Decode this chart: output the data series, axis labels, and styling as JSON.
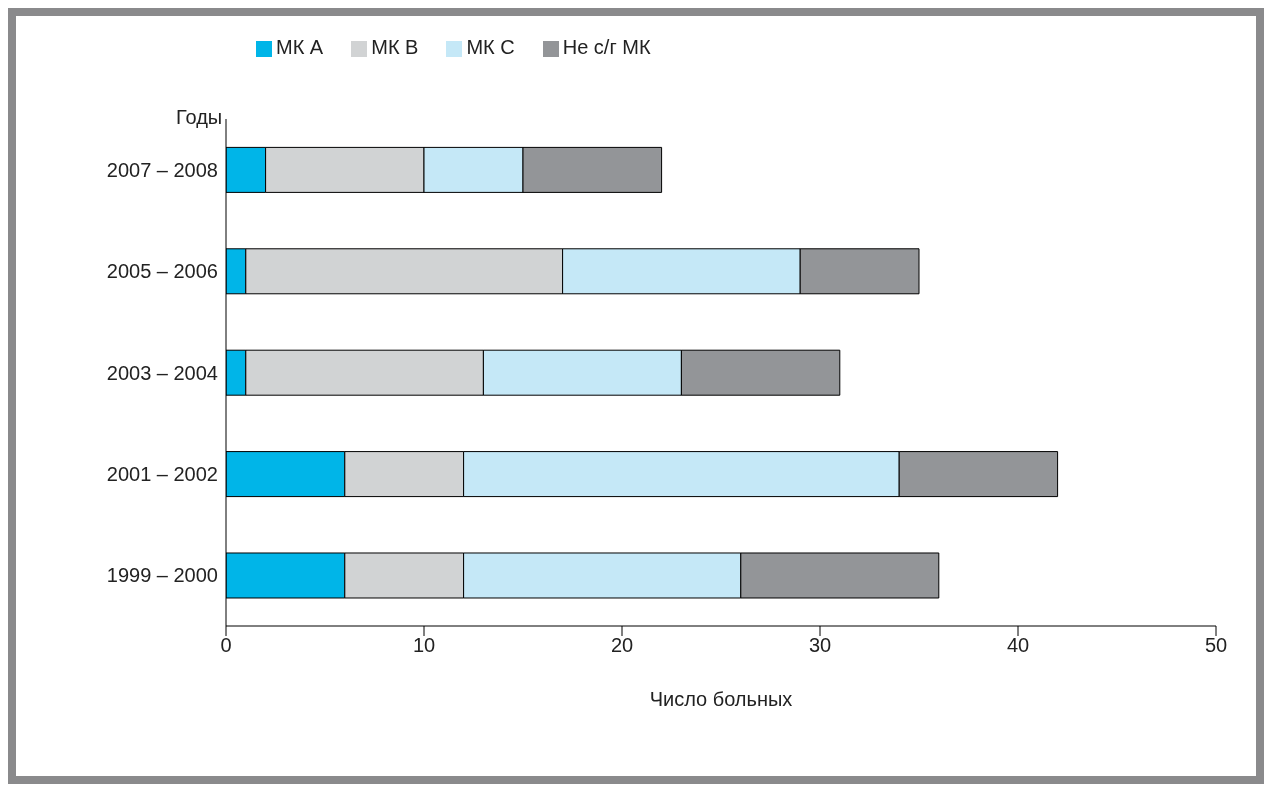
{
  "chart_data": {
    "type": "bar",
    "orientation": "horizontal",
    "stacked": true,
    "xlabel": "Число больных",
    "ylabel": "Годы",
    "categories": [
      "2007 – 2008",
      "2005 – 2006",
      "2003 – 2004",
      "2001 – 2002",
      "1999 – 2000"
    ],
    "series": [
      {
        "name": "МК А",
        "color": "#00b5e8",
        "values": [
          2,
          1,
          1,
          6,
          6
        ]
      },
      {
        "name": "МК В",
        "color": "#d1d3d4",
        "values": [
          8,
          16,
          12,
          6,
          6
        ]
      },
      {
        "name": "МК С",
        "color": "#c5e8f7",
        "values": [
          5,
          12,
          10,
          22,
          14
        ]
      },
      {
        "name": "Не с/г МК",
        "color": "#939598",
        "values": [
          7,
          6,
          8,
          8,
          10
        ]
      }
    ],
    "xlim": [
      0,
      50
    ],
    "xticks": [
      0,
      10,
      20,
      30,
      40,
      50
    ],
    "grid": false,
    "legend": "top left"
  }
}
